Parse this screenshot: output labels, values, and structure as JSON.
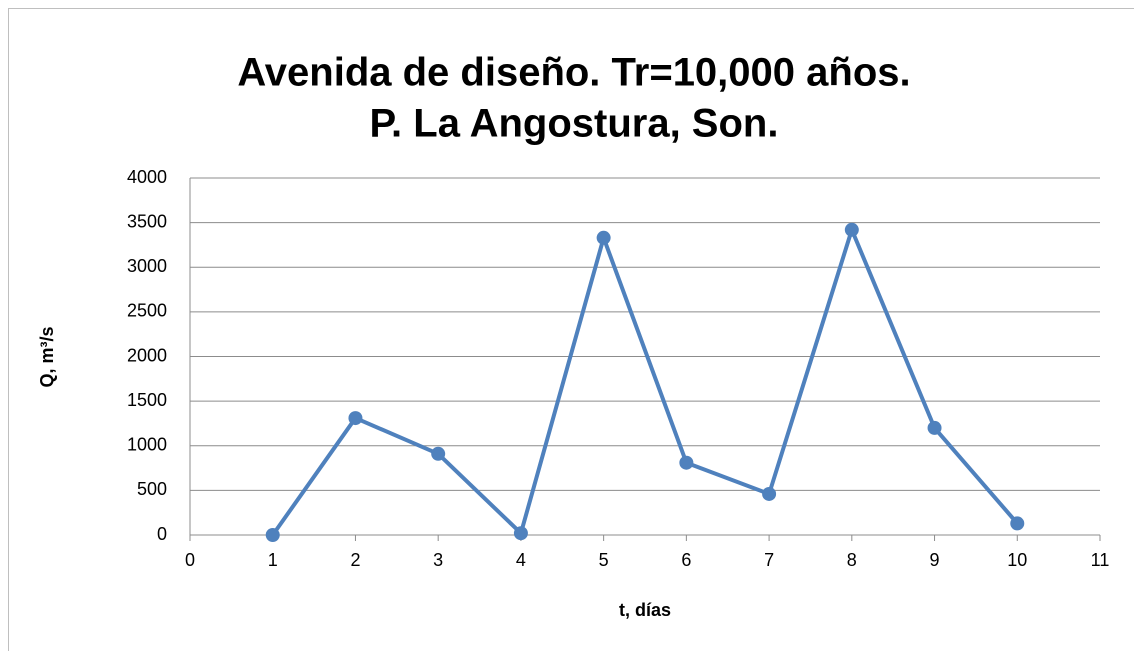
{
  "chart_data": {
    "type": "line",
    "title": [
      "Avenida de diseño. Tr=10,000 años.",
      "P. La Angostura, Son."
    ],
    "xlabel": "t, días",
    "ylabel": "Q, m³/s",
    "x": [
      1,
      2,
      3,
      4,
      5,
      6,
      7,
      8,
      9,
      10
    ],
    "series": [
      {
        "color": "#4f81bd",
        "values": [
          0,
          1310,
          910,
          20,
          3330,
          810,
          460,
          3420,
          1200,
          130
        ]
      }
    ],
    "xlim": [
      0,
      11
    ],
    "xticks": [
      0,
      1,
      2,
      3,
      4,
      5,
      6,
      7,
      8,
      9,
      10,
      11
    ],
    "ylim": [
      0,
      4000
    ],
    "yticks": [
      0,
      500,
      1000,
      1500,
      2000,
      2500,
      3000,
      3500,
      4000
    ],
    "grid": true,
    "markers": true
  }
}
